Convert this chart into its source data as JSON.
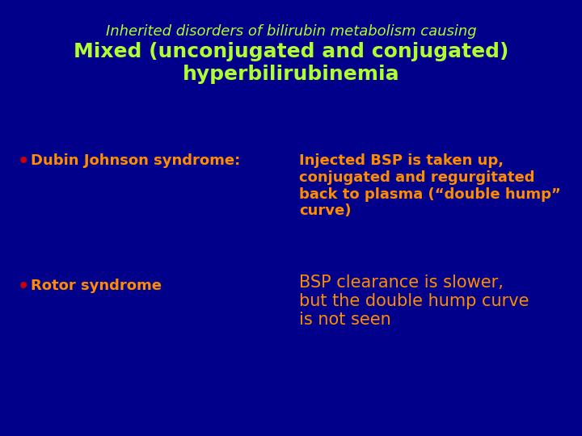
{
  "background_color": "#00008B",
  "title_line1": "Inherited disorders of bilirubin metabolism causing",
  "title_line2": "Mixed (unconjugated and conjugated)\nhyperbilirubinemia",
  "title_line1_color": "#ADFF2F",
  "title_line2_color": "#ADFF2F",
  "title_line1_fontsize": 13,
  "title_line2_fontsize": 18,
  "bullet_color": "#CC0000",
  "bullet1_label": "Dubin Johnson syndrome:",
  "bullet1_label_color": "#FF8C00",
  "bullet1_label_fontsize": 13,
  "bullet1_desc": "Injected BSP is taken up,\nconjugated and regurgitated\nback to plasma (“double hump”\ncurve)",
  "bullet1_desc_color": "#FF8C00",
  "bullet1_desc_fontsize": 13,
  "bullet2_label": "Rotor syndrome",
  "bullet2_label_color": "#FF8C00",
  "bullet2_label_fontsize": 13,
  "bullet2_desc": "BSP clearance is slower,\nbut the double hump curve\nis not seen",
  "bullet2_desc_color": "#FF8C00",
  "bullet2_desc_fontsize": 15
}
